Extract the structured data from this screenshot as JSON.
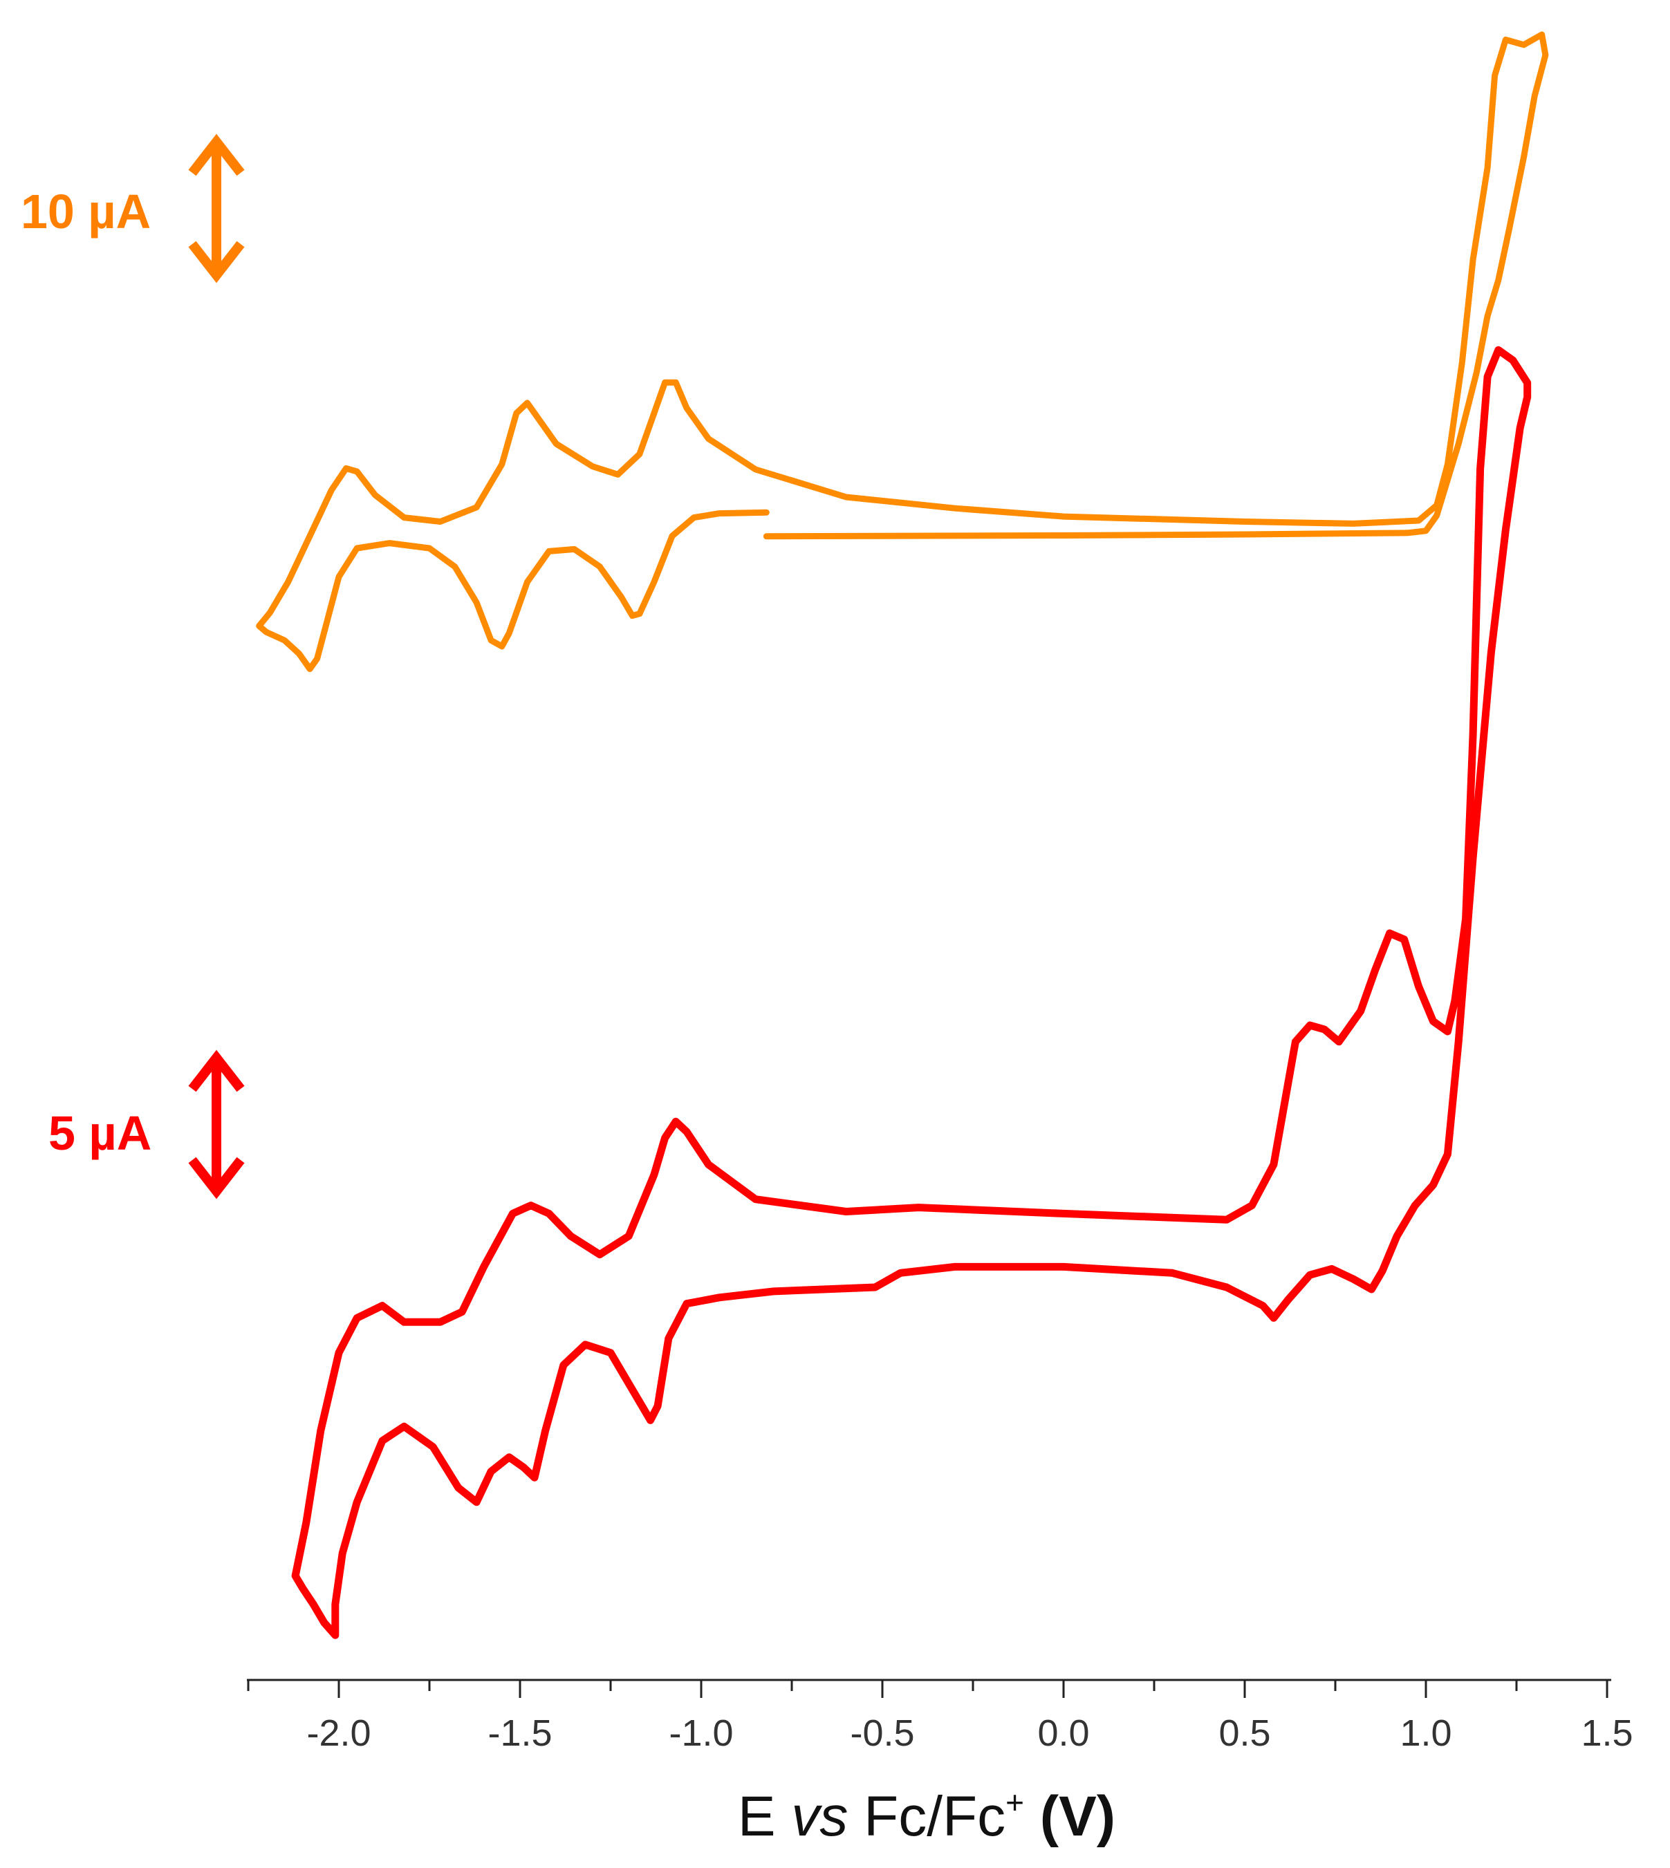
{
  "chart_data": {
    "type": "line",
    "title": "",
    "xlabel": {
      "prefix": "E ",
      "italic": "vs",
      "mid": " Fc/Fc",
      "sup": "+",
      "bold": " (V)"
    },
    "ylabel": "",
    "xlim": [
      -2.25,
      1.5
    ],
    "x_ticks": [
      -2.0,
      -1.5,
      -1.0,
      -0.5,
      0.0,
      0.5,
      1.0,
      1.5
    ],
    "x_tick_labels": [
      "-2.0",
      "-1.5",
      "-1.0",
      "-0.5",
      "0.0",
      "0.5",
      "1.0",
      "1.5"
    ],
    "grid": false,
    "y_axis_shown": false,
    "scale_bars": [
      {
        "label": "10 µA",
        "color": "#ff7f00",
        "current_uA": 10,
        "applies_to": "orange trace"
      },
      {
        "label": "5 µA",
        "color": "#ff0000",
        "current_uA": 5,
        "applies_to": "red trace"
      }
    ],
    "series": [
      {
        "color": "#ff8c00",
        "units": "µA (relative, stacked offset)",
        "points": [
          [
            -0.82,
            0.96
          ],
          [
            -0.5,
            1.0
          ],
          [
            0.0,
            1.05
          ],
          [
            0.5,
            1.15
          ],
          [
            0.95,
            1.3
          ],
          [
            1.0,
            1.5
          ],
          [
            1.03,
            3.0
          ],
          [
            1.09,
            10.0
          ],
          [
            1.14,
            17.0
          ],
          [
            1.17,
            22.5
          ],
          [
            1.2,
            26.0
          ],
          [
            1.23,
            31.0
          ],
          [
            1.27,
            38.0
          ],
          [
            1.3,
            44.0
          ],
          [
            1.33,
            48.0
          ],
          [
            1.32,
            50.0
          ],
          [
            1.27,
            49.0
          ],
          [
            1.22,
            49.5
          ],
          [
            1.19,
            46.0
          ],
          [
            1.17,
            37.0
          ],
          [
            1.13,
            28.0
          ],
          [
            1.1,
            18.0
          ],
          [
            1.06,
            8.0
          ],
          [
            1.03,
            4.0
          ],
          [
            0.98,
            2.5
          ],
          [
            0.8,
            2.2
          ],
          [
            0.5,
            2.4
          ],
          [
            0.0,
            2.9
          ],
          [
            -0.3,
            3.7
          ],
          [
            -0.6,
            4.8
          ],
          [
            -0.85,
            7.5
          ],
          [
            -0.98,
            10.5
          ],
          [
            -1.04,
            13.5
          ],
          [
            -1.07,
            16.0
          ],
          [
            -1.1,
            16.0
          ],
          [
            -1.13,
            13.0
          ],
          [
            -1.17,
            9.0
          ],
          [
            -1.23,
            7.0
          ],
          [
            -1.3,
            7.8
          ],
          [
            -1.4,
            10.0
          ],
          [
            -1.45,
            12.5
          ],
          [
            -1.48,
            14.0
          ],
          [
            -1.51,
            13.0
          ],
          [
            -1.55,
            8.0
          ],
          [
            -1.62,
            3.8
          ],
          [
            -1.72,
            2.4
          ],
          [
            -1.82,
            2.8
          ],
          [
            -1.9,
            5.0
          ],
          [
            -1.95,
            7.3
          ],
          [
            -1.98,
            7.6
          ],
          [
            -2.02,
            5.5
          ],
          [
            -2.08,
            1.0
          ],
          [
            -2.14,
            -3.5
          ],
          [
            -2.19,
            -6.5
          ],
          [
            -2.22,
            -7.8
          ],
          [
            -2.2,
            -8.4
          ],
          [
            -2.15,
            -9.2
          ],
          [
            -2.11,
            -10.5
          ],
          [
            -2.08,
            -12.0
          ],
          [
            -2.06,
            -11.0
          ],
          [
            -2.03,
            -7.0
          ],
          [
            -2.0,
            -3.0
          ],
          [
            -1.95,
            -0.2
          ],
          [
            -1.86,
            0.3
          ],
          [
            -1.75,
            -0.2
          ],
          [
            -1.68,
            -2.0
          ],
          [
            -1.62,
            -5.5
          ],
          [
            -1.58,
            -9.2
          ],
          [
            -1.55,
            -9.8
          ],
          [
            -1.53,
            -8.5
          ],
          [
            -1.48,
            -3.5
          ],
          [
            -1.42,
            -0.5
          ],
          [
            -1.35,
            -0.3
          ],
          [
            -1.28,
            -2.0
          ],
          [
            -1.22,
            -5.0
          ],
          [
            -1.19,
            -6.8
          ],
          [
            -1.17,
            -6.6
          ],
          [
            -1.13,
            -3.5
          ],
          [
            -1.08,
            1.0
          ],
          [
            -1.02,
            2.8
          ],
          [
            -0.95,
            3.2
          ],
          [
            -0.82,
            3.3
          ]
        ]
      },
      {
        "color": "#ff0000",
        "units": "µA (relative, stacked offset)",
        "points": [
          [
            -0.52,
            0.0
          ],
          [
            -0.45,
            0.7
          ],
          [
            -0.3,
            1.0
          ],
          [
            0.0,
            1.0
          ],
          [
            0.3,
            0.7
          ],
          [
            0.45,
            0.0
          ],
          [
            0.55,
            -0.9
          ],
          [
            0.58,
            -1.5
          ],
          [
            0.62,
            -0.6
          ],
          [
            0.68,
            0.6
          ],
          [
            0.74,
            0.9
          ],
          [
            0.8,
            0.4
          ],
          [
            0.85,
            -0.1
          ],
          [
            0.88,
            0.8
          ],
          [
            0.92,
            2.5
          ],
          [
            0.97,
            4.0
          ],
          [
            1.02,
            5.0
          ],
          [
            1.06,
            6.5
          ],
          [
            1.09,
            12.0
          ],
          [
            1.13,
            21.0
          ],
          [
            1.18,
            31.0
          ],
          [
            1.22,
            37.0
          ],
          [
            1.26,
            42.0
          ],
          [
            1.28,
            43.5
          ],
          [
            1.28,
            44.2
          ],
          [
            1.24,
            45.3
          ],
          [
            1.2,
            45.8
          ],
          [
            1.17,
            44.5
          ],
          [
            1.15,
            40.0
          ],
          [
            1.13,
            27.0
          ],
          [
            1.11,
            18.0
          ],
          [
            1.08,
            14.0
          ],
          [
            1.06,
            12.5
          ],
          [
            1.02,
            13.0
          ],
          [
            0.98,
            14.7
          ],
          [
            0.94,
            17.0
          ],
          [
            0.9,
            17.3
          ],
          [
            0.86,
            15.5
          ],
          [
            0.82,
            13.5
          ],
          [
            0.76,
            12.0
          ],
          [
            0.72,
            12.6
          ],
          [
            0.68,
            12.8
          ],
          [
            0.64,
            12.0
          ],
          [
            0.62,
            10.0
          ],
          [
            0.58,
            6.0
          ],
          [
            0.52,
            4.0
          ],
          [
            0.45,
            3.3
          ],
          [
            0.0,
            3.6
          ],
          [
            -0.4,
            3.9
          ],
          [
            -0.6,
            3.7
          ],
          [
            -0.85,
            4.3
          ],
          [
            -0.98,
            6.0
          ],
          [
            -1.04,
            7.6
          ],
          [
            -1.07,
            8.1
          ],
          [
            -1.1,
            7.3
          ],
          [
            -1.13,
            5.5
          ],
          [
            -1.2,
            2.5
          ],
          [
            -1.28,
            1.6
          ],
          [
            -1.36,
            2.5
          ],
          [
            -1.42,
            3.6
          ],
          [
            -1.47,
            4.0
          ],
          [
            -1.52,
            3.6
          ],
          [
            -1.6,
            1.0
          ],
          [
            -1.66,
            -1.2
          ],
          [
            -1.72,
            -1.7
          ],
          [
            -1.82,
            -1.7
          ],
          [
            -1.88,
            -0.9
          ],
          [
            -1.95,
            -1.5
          ],
          [
            -2.0,
            -3.2
          ],
          [
            -2.05,
            -7.0
          ],
          [
            -2.09,
            -11.5
          ],
          [
            -2.12,
            -14.1
          ],
          [
            -2.1,
            -14.7
          ],
          [
            -2.07,
            -15.5
          ],
          [
            -2.04,
            -16.4
          ],
          [
            -2.01,
            -17.0
          ],
          [
            -2.01,
            -15.5
          ],
          [
            -1.99,
            -13.0
          ],
          [
            -1.95,
            -10.5
          ],
          [
            -1.88,
            -7.5
          ],
          [
            -1.82,
            -6.8
          ],
          [
            -1.74,
            -7.8
          ],
          [
            -1.67,
            -9.8
          ],
          [
            -1.62,
            -10.5
          ],
          [
            -1.58,
            -9.0
          ],
          [
            -1.53,
            -8.3
          ],
          [
            -1.49,
            -8.8
          ],
          [
            -1.46,
            -9.3
          ],
          [
            -1.43,
            -7.0
          ],
          [
            -1.38,
            -3.8
          ],
          [
            -1.32,
            -2.8
          ],
          [
            -1.25,
            -3.2
          ],
          [
            -1.19,
            -5.0
          ],
          [
            -1.14,
            -6.5
          ],
          [
            -1.12,
            -5.8
          ],
          [
            -1.09,
            -2.5
          ],
          [
            -1.04,
            -0.8
          ],
          [
            -0.95,
            -0.5
          ],
          [
            -0.8,
            -0.2
          ],
          [
            -0.52,
            0.0
          ]
        ]
      }
    ]
  }
}
